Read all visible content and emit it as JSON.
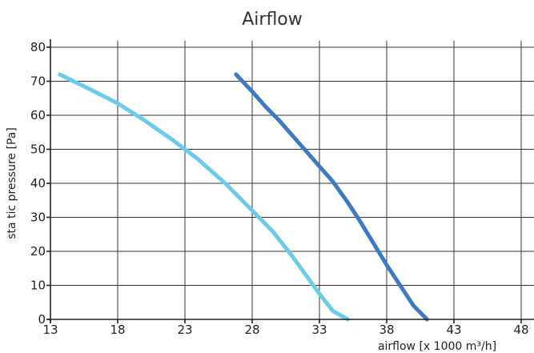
{
  "chart_data": {
    "type": "line",
    "title": "Airflow",
    "xlabel": "airflow [x 1000 m³/h]",
    "ylabel": "sta tic pressure [Pa]",
    "xlim": [
      13,
      48
    ],
    "ylim": [
      0,
      80
    ],
    "xticks": [
      13,
      18,
      23,
      28,
      33,
      38,
      43,
      48
    ],
    "yticks": [
      0,
      10,
      20,
      30,
      40,
      50,
      60,
      70,
      80
    ],
    "grid": true,
    "series": [
      {
        "color": "#6DCBEA",
        "x": [
          13.7,
          16,
          18,
          20,
          22,
          24,
          26,
          28,
          29.5,
          31,
          32,
          33,
          34,
          35.1
        ],
        "y": [
          72,
          67.5,
          63.5,
          58.5,
          53,
          47,
          40,
          32,
          26,
          18.5,
          13,
          7.5,
          2.5,
          0
        ]
      },
      {
        "color": "#3F79BE",
        "x": [
          26.8,
          28,
          29,
          30,
          31,
          32,
          33,
          34,
          35,
          36,
          37,
          38,
          39,
          40,
          41
        ],
        "y": [
          72,
          67,
          62.5,
          58.5,
          54,
          49.5,
          45,
          40.5,
          35,
          29,
          22.5,
          16,
          10,
          4,
          0
        ]
      }
    ]
  }
}
